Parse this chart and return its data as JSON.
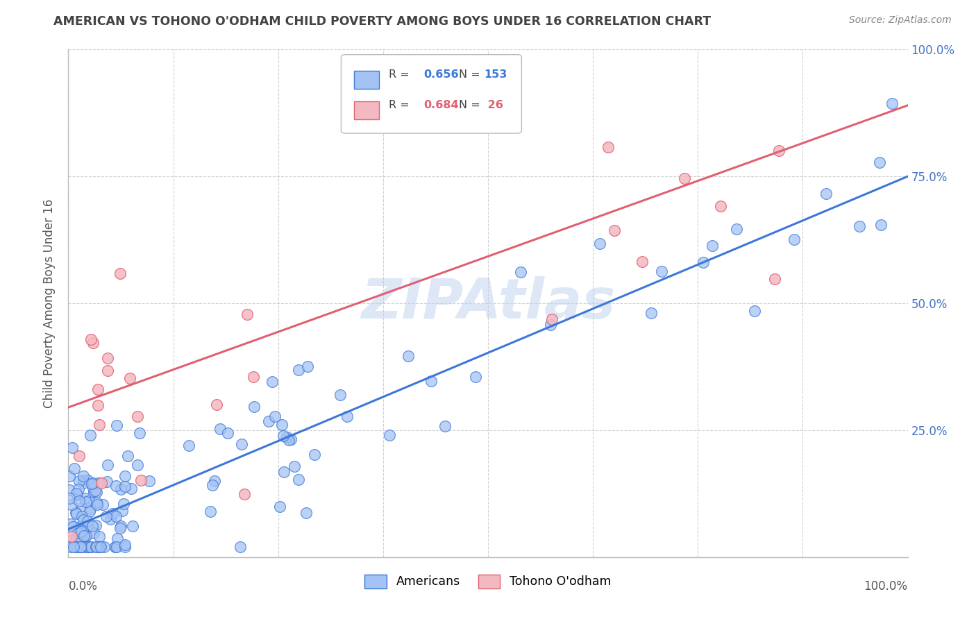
{
  "title": "AMERICAN VS TOHONO O'ODHAM CHILD POVERTY AMONG BOYS UNDER 16 CORRELATION CHART",
  "source": "Source: ZipAtlas.com",
  "ylabel": "Child Poverty Among Boys Under 16",
  "american_color": "#a4c2f4",
  "tohono_color": "#f4b8c1",
  "regression_american_color": "#3c78d8",
  "regression_tohono_color": "#e06070",
  "watermark": "ZIPAtlas",
  "background_color": "#ffffff",
  "grid_color": "#cccccc",
  "title_color": "#434343",
  "source_color": "#888888",
  "right_tick_color": "#4472c4",
  "intercept_am": 0.055,
  "slope_am": 0.695,
  "intercept_to": 0.295,
  "slope_to": 0.595
}
